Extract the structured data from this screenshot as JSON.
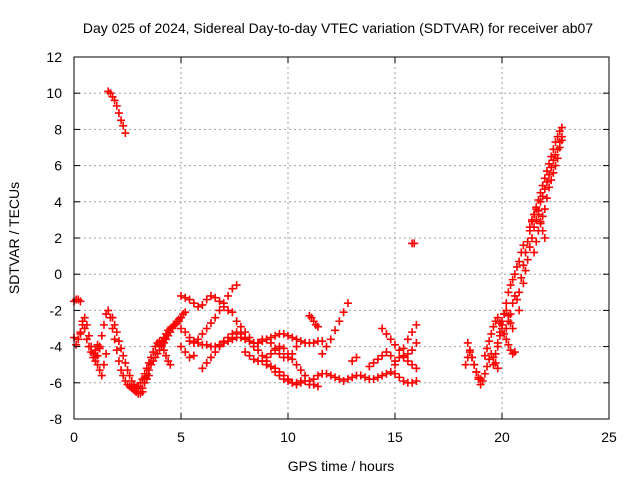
{
  "chart_data": {
    "type": "scatter",
    "title": "Day 025 of 2024, Sidereal Day-to-day VTEC variation (SDTVAR) for receiver ab07",
    "xlabel": "GPS time / hours",
    "ylabel": "SDTVAR / TECUs",
    "xlim": [
      0,
      25
    ],
    "ylim": [
      -8,
      12
    ],
    "xticks": [
      "0",
      "5",
      "10",
      "15",
      "20",
      "25"
    ],
    "yticks": [
      "-8",
      "-6",
      "-4",
      "-2",
      "0",
      "2",
      "4",
      "6",
      "8",
      "10",
      "12"
    ],
    "grid": true,
    "marker": "plus",
    "color": "#ff0000",
    "series": [
      {
        "x": [
          0.0,
          0.1,
          0.2,
          0.3
        ],
        "y": [
          -1.5,
          -1.4,
          -1.4,
          -1.5
        ]
      },
      {
        "x": [
          0.0,
          0.1,
          0.2,
          0.3,
          0.4,
          0.5,
          0.6,
          0.7,
          0.8,
          0.9,
          1.0,
          1.1,
          1.2,
          1.3,
          1.4,
          1.5,
          1.6,
          1.7,
          1.8,
          1.9,
          2.0,
          2.1,
          2.2,
          2.3,
          2.4,
          2.5,
          2.6,
          2.7,
          2.8,
          2.9,
          3.0,
          3.1,
          3.2,
          3.3,
          3.4,
          3.5
        ],
        "y": [
          -3.5,
          -3.9,
          -3.6,
          -3.2,
          -2.8,
          -3.0,
          -3.6,
          -4.0,
          -4.3,
          -4.6,
          -4.8,
          -4.5,
          -4.0,
          -3.4,
          -2.8,
          -2.2,
          -2.0,
          -2.4,
          -3.0,
          -3.6,
          -4.2,
          -4.8,
          -5.3,
          -5.6,
          -5.9,
          -6.1,
          -6.2,
          -6.3,
          -6.4,
          -6.5,
          -6.6,
          -6.5,
          -6.3,
          -6.0,
          -5.8,
          -5.6
        ]
      },
      {
        "x": [
          0.3,
          0.4,
          0.5,
          0.6,
          0.7,
          0.8,
          0.9,
          1.0,
          1.1,
          1.2
        ],
        "y": [
          -3.3,
          -2.6,
          -2.4,
          -2.8,
          -3.4,
          -4.0,
          -4.4,
          -4.2,
          -3.9,
          -4.1
        ]
      },
      {
        "x": [
          1.0,
          1.1,
          1.2,
          1.3,
          1.4,
          1.5
        ],
        "y": [
          -4.6,
          -5.0,
          -5.3,
          -5.6,
          -5.0,
          -4.4
        ]
      },
      {
        "x": [
          1.6,
          1.7,
          1.8,
          1.9,
          2.0,
          2.1,
          2.2,
          2.3,
          2.4
        ],
        "y": [
          10.1,
          10.0,
          9.8,
          9.6,
          9.3,
          8.9,
          8.5,
          8.2,
          7.8
        ]
      },
      {
        "x": [
          1.8,
          1.9,
          2.0,
          2.1,
          2.2,
          2.3,
          2.4,
          2.5,
          2.6,
          2.7,
          2.8,
          2.9,
          3.0,
          3.1,
          3.2
        ],
        "y": [
          -2.4,
          -2.8,
          -3.2,
          -3.7,
          -4.1,
          -4.5,
          -4.9,
          -5.3,
          -5.6,
          -5.9,
          -6.1,
          -6.3,
          -6.5,
          -6.6,
          -6.5
        ]
      },
      {
        "x": [
          3.0,
          3.1,
          3.2,
          3.3,
          3.4,
          3.5,
          3.6,
          3.7,
          3.8,
          3.9,
          4.0,
          4.1,
          4.2,
          4.3,
          4.4,
          4.5,
          4.6,
          4.7,
          4.8,
          4.9,
          5.0
        ],
        "y": [
          -6.2,
          -6.0,
          -5.8,
          -5.7,
          -5.5,
          -5.3,
          -5.0,
          -4.8,
          -4.6,
          -4.4,
          -4.2,
          -4.0,
          -3.8,
          -3.6,
          -3.4,
          -3.2,
          -3.0,
          -2.8,
          -2.6,
          -2.5,
          -2.4
        ]
      },
      {
        "x": [
          3.2,
          3.3,
          3.4,
          3.5,
          3.6,
          3.7,
          3.8,
          3.9,
          4.0,
          4.1,
          4.2,
          4.3,
          4.4,
          4.5
        ],
        "y": [
          -5.8,
          -5.5,
          -5.2,
          -4.9,
          -4.6,
          -4.3,
          -4.0,
          -3.8,
          -3.7,
          -3.9,
          -4.2,
          -4.5,
          -4.8,
          -5.0
        ]
      },
      {
        "x": [
          4.0,
          4.1,
          4.2,
          4.3,
          4.4,
          4.5,
          4.6,
          4.7,
          4.8,
          4.9,
          5.0,
          5.1,
          5.2
        ],
        "y": [
          -3.9,
          -3.7,
          -3.5,
          -3.3,
          -3.1,
          -3.0,
          -2.9,
          -2.8,
          -2.7,
          -2.6,
          -2.4,
          -2.2,
          -2.1
        ]
      },
      {
        "x": [
          5.0,
          5.2,
          5.4,
          5.6,
          5.8,
          6.0,
          6.2,
          6.4,
          6.6,
          6.8,
          7.0,
          7.2,
          7.4,
          7.6
        ],
        "y": [
          -3.0,
          -3.2,
          -3.5,
          -3.7,
          -3.6,
          -3.3,
          -3.0,
          -2.7,
          -2.4,
          -2.0,
          -1.6,
          -1.2,
          -0.8,
          -0.6
        ]
      },
      {
        "x": [
          5.0,
          5.2,
          5.4,
          5.6,
          5.8,
          6.0,
          6.2,
          6.4,
          6.6,
          6.8,
          7.0,
          7.2,
          7.4
        ],
        "y": [
          -1.2,
          -1.3,
          -1.4,
          -1.6,
          -1.8,
          -1.7,
          -1.4,
          -1.2,
          -1.3,
          -1.5,
          -1.8,
          -2.0,
          -2.1
        ]
      },
      {
        "x": [
          5.0,
          5.2,
          5.4,
          5.6
        ],
        "y": [
          -4.0,
          -4.3,
          -4.6,
          -4.5
        ]
      },
      {
        "x": [
          5.4,
          5.6,
          5.8,
          6.0,
          6.2,
          6.4,
          6.6,
          6.8,
          7.0,
          7.2,
          7.4,
          7.6,
          7.8,
          8.0,
          8.2,
          8.4,
          8.6,
          8.8,
          9.0,
          9.2,
          9.4,
          9.6,
          9.8,
          10.0,
          10.2,
          10.4,
          10.6,
          10.8,
          11.0,
          11.2,
          11.4,
          11.6
        ],
        "y": [
          -3.7,
          -3.8,
          -3.8,
          -3.9,
          -3.9,
          -4.0,
          -4.0,
          -3.9,
          -3.8,
          -3.7,
          -3.6,
          -3.5,
          -3.5,
          -3.6,
          -3.7,
          -3.8,
          -3.8,
          -3.7,
          -3.6,
          -3.5,
          -3.4,
          -3.3,
          -3.3,
          -3.4,
          -3.5,
          -3.6,
          -3.7,
          -3.8,
          -3.8,
          -3.8,
          -3.7,
          -3.7
        ]
      },
      {
        "x": [
          6.0,
          6.2,
          6.4,
          6.6,
          6.8,
          7.0,
          7.2,
          7.4,
          7.6,
          7.8,
          8.0
        ],
        "y": [
          -5.2,
          -4.9,
          -4.6,
          -4.3,
          -4.0,
          -3.7,
          -3.5,
          -3.3,
          -3.2,
          -3.3,
          -3.5
        ]
      },
      {
        "x": [
          7.6,
          7.8,
          8.0,
          8.2,
          8.4,
          8.6,
          8.8,
          9.0,
          9.2,
          9.4,
          9.6,
          9.8,
          10.0,
          10.2,
          10.4,
          10.6
        ],
        "y": [
          -2.6,
          -2.9,
          -3.2,
          -3.5,
          -3.8,
          -4.2,
          -4.5,
          -4.8,
          -5.1,
          -5.4,
          -5.6,
          -5.8,
          -5.9,
          -6.0,
          -6.0,
          -5.9
        ]
      },
      {
        "x": [
          8.0,
          8.2,
          8.4,
          8.6,
          8.8,
          9.0,
          9.2,
          9.4,
          9.6,
          9.8,
          10.0,
          10.2,
          10.4,
          10.6,
          10.8,
          11.0,
          11.2,
          11.4
        ],
        "y": [
          -4.3,
          -4.5,
          -4.7,
          -4.8,
          -4.8,
          -4.6,
          -4.4,
          -4.2,
          -4.0,
          -4.1,
          -4.4,
          -4.7,
          -5.0,
          -5.3,
          -5.6,
          -5.9,
          -6.1,
          -6.2
        ]
      },
      {
        "x": [
          8.4,
          8.6,
          8.8,
          9.0,
          9.2,
          9.4,
          9.6,
          9.8,
          10.0,
          10.2,
          10.4
        ],
        "y": [
          -4.0,
          -3.8,
          -3.6,
          -3.6,
          -3.8,
          -4.1,
          -4.4,
          -4.6,
          -4.6,
          -4.4,
          -4.0
        ]
      },
      {
        "x": [
          9.0,
          9.2,
          9.4,
          9.6,
          9.8,
          10.0,
          10.2,
          10.4,
          10.6,
          10.8,
          11.0
        ],
        "y": [
          -5.0,
          -5.1,
          -5.2,
          -5.4,
          -5.6,
          -5.8,
          -6.0,
          -6.1,
          -6.0,
          -5.9,
          -6.1
        ]
      },
      {
        "x": [
          11.0,
          11.1,
          11.2,
          11.3,
          11.4
        ],
        "y": [
          -2.3,
          -2.4,
          -2.6,
          -2.8,
          -2.9
        ]
      },
      {
        "x": [
          11.6,
          11.8,
          12.0,
          12.2,
          12.4,
          12.6,
          12.8
        ],
        "y": [
          -4.4,
          -4.0,
          -3.6,
          -3.1,
          -2.6,
          -2.1,
          -1.6
        ]
      },
      {
        "x": [
          11.2,
          11.4,
          11.6,
          11.8,
          12.0,
          12.2,
          12.4,
          12.6,
          12.8,
          13.0,
          13.2,
          13.4,
          13.6,
          13.8,
          14.0,
          14.2,
          14.4,
          14.6,
          14.8,
          15.0,
          15.2,
          15.4,
          15.6,
          15.8,
          16.0
        ],
        "y": [
          -5.8,
          -5.6,
          -5.5,
          -5.5,
          -5.6,
          -5.7,
          -5.8,
          -5.9,
          -5.8,
          -5.7,
          -5.6,
          -5.6,
          -5.7,
          -5.8,
          -5.8,
          -5.7,
          -5.6,
          -5.5,
          -5.4,
          -5.5,
          -5.7,
          -5.9,
          -6.0,
          -6.0,
          -5.9
        ]
      },
      {
        "x": [
          13.0,
          13.2
        ],
        "y": [
          -4.8,
          -4.6
        ]
      },
      {
        "x": [
          13.8,
          14.0,
          14.2,
          14.4,
          14.6,
          14.8,
          15.0
        ],
        "y": [
          -5.1,
          -4.9,
          -4.7,
          -4.5,
          -4.3,
          -4.5,
          -4.8
        ]
      },
      {
        "x": [
          14.4,
          14.6,
          14.8,
          15.0,
          15.2,
          15.4,
          15.6,
          15.8,
          16.0
        ],
        "y": [
          -3.0,
          -3.3,
          -3.6,
          -3.9,
          -4.2,
          -4.5,
          -4.8,
          -5.0,
          -5.2
        ]
      },
      {
        "x": [
          15.0,
          15.2,
          15.4,
          15.6,
          15.8,
          16.0
        ],
        "y": [
          -5.0,
          -4.6,
          -4.1,
          -3.6,
          -3.2,
          -2.8
        ]
      },
      {
        "x": [
          15.4,
          15.6,
          15.8,
          16.0
        ],
        "y": [
          -4.6,
          -4.4,
          -4.2,
          -3.8
        ]
      },
      {
        "x": [
          15.8,
          15.9
        ],
        "y": [
          1.7,
          1.7
        ]
      },
      {
        "x": [
          18.3,
          18.4,
          18.5,
          18.6,
          18.7,
          18.8,
          18.9,
          19.0,
          19.1,
          19.2,
          19.3,
          19.4,
          19.5,
          19.6,
          19.7,
          19.8
        ],
        "y": [
          -5.0,
          -4.6,
          -4.3,
          -4.6,
          -5.0,
          -5.4,
          -5.8,
          -6.1,
          -5.9,
          -5.5,
          -5.1,
          -4.7,
          -4.4,
          -4.6,
          -4.9,
          -5.2
        ]
      },
      {
        "x": [
          18.4,
          18.5,
          18.6,
          18.7,
          18.8,
          18.9,
          19.0
        ],
        "y": [
          -3.8,
          -4.2,
          -4.6,
          -5.0,
          -5.4,
          -5.7,
          -5.8
        ]
      },
      {
        "x": [
          19.2,
          19.3,
          19.4,
          19.5,
          19.6,
          19.7,
          19.8,
          19.9,
          20.0,
          20.1,
          20.2,
          20.3,
          20.4,
          20.5,
          20.6
        ],
        "y": [
          -4.5,
          -4.1,
          -3.7,
          -3.3,
          -2.9,
          -2.6,
          -2.4,
          -2.7,
          -3.0,
          -3.3,
          -3.6,
          -3.9,
          -4.2,
          -4.4,
          -4.3
        ]
      },
      {
        "x": [
          19.6,
          19.7,
          19.8,
          19.9,
          20.0,
          20.1,
          20.2,
          20.3,
          20.4,
          20.5
        ],
        "y": [
          -5.0,
          -4.4,
          -3.8,
          -3.2,
          -2.6,
          -2.2,
          -2.0,
          -2.3,
          -2.7,
          -3.0
        ]
      },
      {
        "x": [
          19.8,
          19.9,
          20.0,
          20.1,
          20.2,
          20.3,
          20.4,
          20.5,
          20.6,
          20.7,
          20.8,
          20.9,
          21.0
        ],
        "y": [
          -4.0,
          -3.4,
          -2.8,
          -2.2,
          -1.6,
          -1.0,
          -0.6,
          -0.3,
          0.0,
          0.4,
          0.7,
          1.2,
          1.6
        ]
      },
      {
        "x": [
          20.2,
          20.3,
          20.4,
          20.5,
          20.6,
          20.7,
          20.8
        ],
        "y": [
          -3.0,
          -2.6,
          -2.2,
          -1.6,
          -1.2,
          -1.4,
          -2.0
        ]
      },
      {
        "x": [
          20.8,
          20.9,
          21.0,
          21.1,
          21.2,
          21.3,
          21.4,
          21.5,
          21.6,
          21.7,
          21.8,
          21.9,
          22.0,
          22.1,
          22.2,
          22.3,
          22.4,
          22.5,
          22.6,
          22.7,
          22.8
        ],
        "y": [
          -1.0,
          -0.2,
          0.5,
          1.2,
          1.8,
          2.4,
          2.9,
          3.3,
          3.7,
          4.1,
          4.5,
          4.9,
          5.3,
          5.7,
          6.1,
          6.5,
          6.9,
          7.3,
          7.6,
          7.9,
          8.1
        ]
      },
      {
        "x": [
          21.0,
          21.1,
          21.2,
          21.3,
          21.4,
          21.5,
          21.6,
          21.7,
          21.8,
          21.9,
          22.0,
          22.1,
          22.2,
          22.3,
          22.4,
          22.5,
          22.6,
          22.7,
          22.8
        ],
        "y": [
          -0.5,
          0.2,
          0.8,
          1.5,
          2.0,
          2.6,
          3.0,
          3.5,
          4.0,
          4.3,
          4.7,
          5.1,
          5.5,
          5.9,
          6.3,
          6.6,
          6.9,
          7.3,
          7.6
        ]
      },
      {
        "x": [
          21.5,
          21.6,
          21.7,
          21.8,
          21.9,
          22.0,
          22.1,
          22.2,
          22.3,
          22.4,
          22.5,
          22.6,
          22.7,
          22.8
        ],
        "y": [
          1.2,
          1.8,
          2.4,
          2.9,
          3.2,
          3.6,
          4.2,
          4.8,
          5.2,
          5.6,
          6.0,
          6.4,
          7.0,
          7.4
        ]
      },
      {
        "x": [
          21.3,
          21.4,
          21.5,
          21.6,
          21.7,
          21.8,
          21.9,
          22.0
        ],
        "y": [
          2.6,
          3.0,
          3.3,
          3.6,
          3.3,
          2.8,
          2.4,
          2.0
        ]
      }
    ]
  }
}
